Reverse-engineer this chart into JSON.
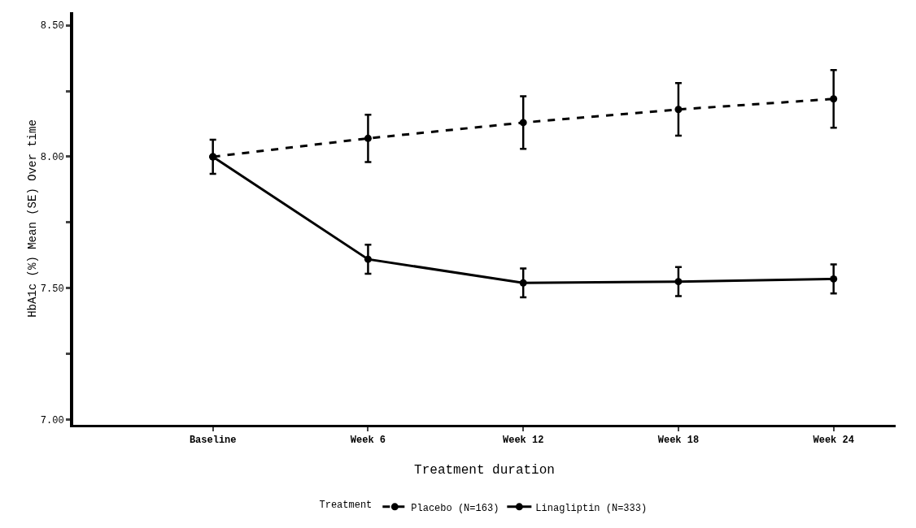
{
  "chart_data": {
    "type": "line",
    "xlabel": "Treatment duration",
    "ylabel": "HbA1c (%) Mean (SE) Over time",
    "legend_title": "Treatment",
    "categories": [
      "Baseline",
      "Week 6",
      "Week 12",
      "Week 18",
      "Week 24"
    ],
    "series": [
      {
        "name": "Placebo (N=163)",
        "color": "#000000",
        "line_style": "dashed",
        "values": [
          8.0,
          8.07,
          8.13,
          8.18,
          8.22
        ],
        "errors": [
          0.065,
          0.09,
          0.1,
          0.1,
          0.11
        ]
      },
      {
        "name": "Linagliptin (N=333)",
        "color": "#000000",
        "line_style": "solid",
        "values": [
          8.0,
          7.61,
          7.52,
          7.525,
          7.535
        ],
        "errors": [
          null,
          0.055,
          0.055,
          0.055,
          0.055
        ]
      }
    ],
    "ylim": [
      6.98,
      8.55
    ],
    "yticks": [
      {
        "value": 7.0,
        "label": "7.00"
      },
      {
        "value": 7.25,
        "label": null
      },
      {
        "value": 7.5,
        "label": "7.50"
      },
      {
        "value": 7.75,
        "label": null
      },
      {
        "value": 8.0,
        "label": "8.00"
      },
      {
        "value": 8.25,
        "label": null
      },
      {
        "value": 8.5,
        "label": "8.50"
      }
    ],
    "marker": "circle",
    "grid": false,
    "legend": "bottom"
  }
}
